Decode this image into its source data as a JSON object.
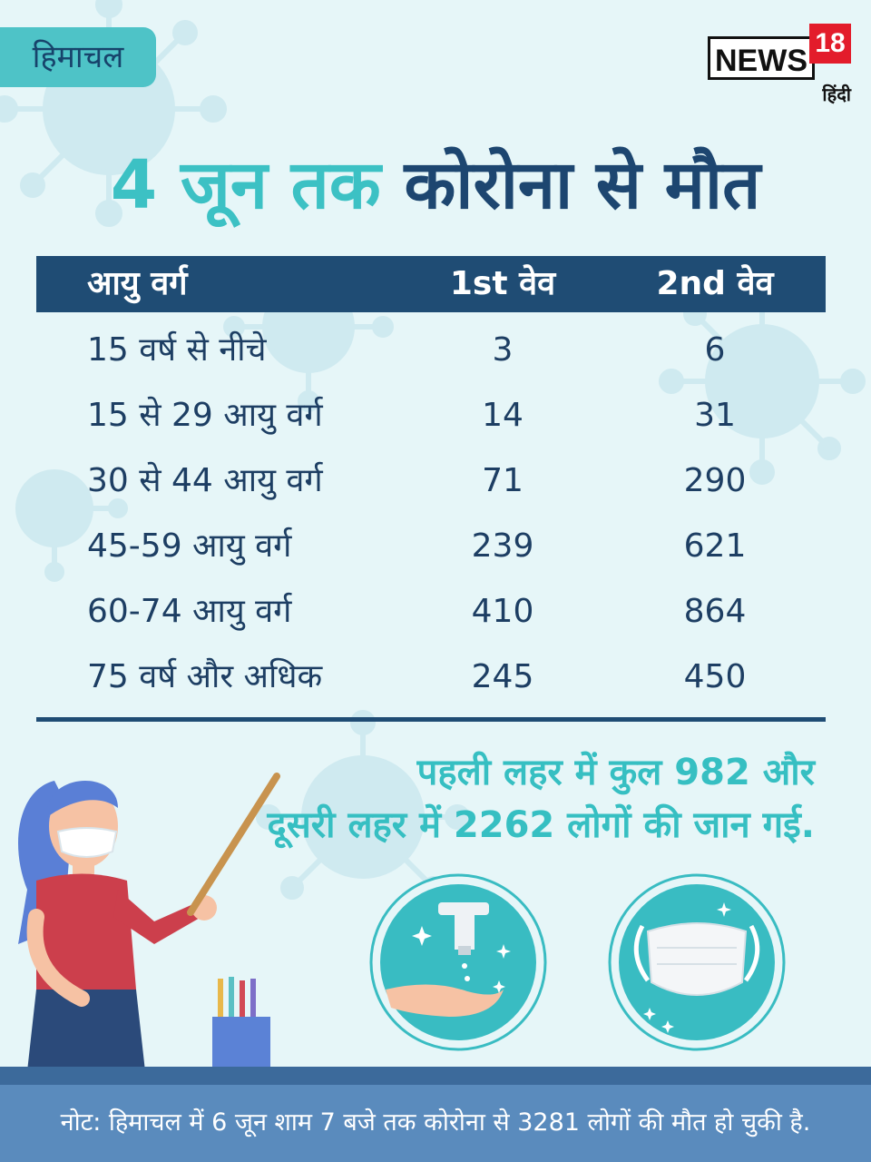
{
  "region_tag": "हिमाचल",
  "brand": {
    "news": "NEWS",
    "number": "18",
    "sub": "हिंदी"
  },
  "title": {
    "part1": "4 जून तक",
    "part2": "कोरोना से मौत"
  },
  "table": {
    "headers": [
      "आयु वर्ग",
      "1st वेव",
      "2nd वेव"
    ],
    "rows": [
      [
        "15 वर्ष से नीचे",
        "3",
        "6"
      ],
      [
        "15 से 29 आयु वर्ग",
        "14",
        "31"
      ],
      [
        "30 से 44 आयु वर्ग",
        "71",
        "290"
      ],
      [
        "45-59 आयु वर्ग",
        "239",
        "621"
      ],
      [
        "60-74 आयु वर्ग",
        "410",
        "864"
      ],
      [
        "75 वर्ष और अधिक",
        "245",
        "450"
      ]
    ]
  },
  "summary": {
    "line1": "पहली लहर में कुल 982 और",
    "line2": "दूसरी लहर में 2262 लोगों की जान गई."
  },
  "footer_note": "नोट: हिमाचल में 6 जून शाम 7 बजे तक कोरोना से 3281 लोगों की मौत हो चुकी है.",
  "colors": {
    "navy": "#1f4c74",
    "teal": "#3cc1c4",
    "background": "#e6f6f8",
    "footer": "#5a8bbd"
  },
  "icons": [
    "virus-icon",
    "teacher-illustration",
    "pencil-cup-icon",
    "hand-wash-icon",
    "face-mask-icon"
  ]
}
